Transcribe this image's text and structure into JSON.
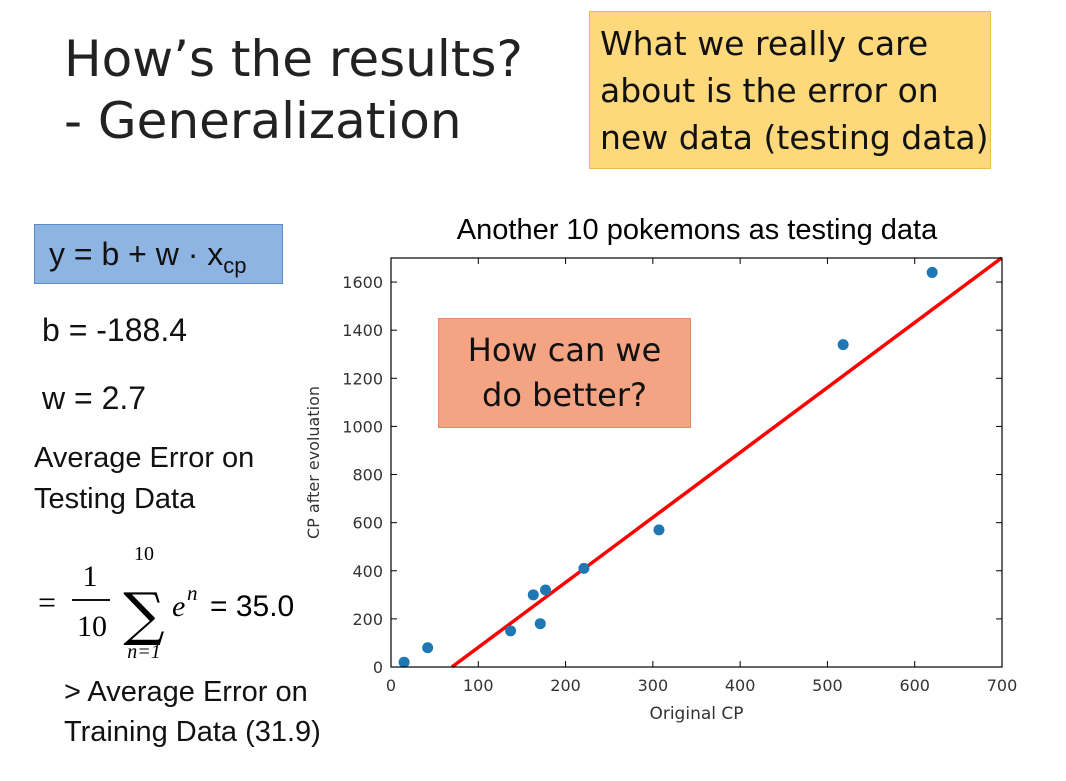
{
  "slide": {
    "title_line1": "How’s the results?",
    "title_line2": "- Generalization",
    "callout_lines": [
      "What we really care",
      "about is the error on",
      "new data (testing data)"
    ],
    "model": {
      "prefix": "y = b + w · x",
      "subscript": "cp"
    },
    "b_text": "b = -188.4",
    "w_text": "w = 2.7",
    "avg_error_lines": [
      "Average Error on",
      "Testing Data"
    ],
    "sum_formula": {
      "equals": "=",
      "frac_num": "1",
      "frac_den": "10",
      "sigma": "∑",
      "upper": "10",
      "lower": "n=1",
      "base": "e",
      "sup": "n",
      "result": "= 35.0"
    },
    "compare_lines": [
      "> Average Error on",
      "Training Data (31.9)"
    ],
    "overlay_lines": [
      "How can we",
      "do better?"
    ]
  },
  "colors": {
    "points": "#1f77b4",
    "fit_line": "#ff0000",
    "callout_bg": "#fdd97c",
    "formula_bg": "#8db4e2",
    "overlay_bg": "#f4a383"
  },
  "chart_data": {
    "type": "scatter",
    "title": "Another 10 pokemons as testing data",
    "xlabel": "Original CP",
    "ylabel": "CP after evoluation",
    "xlim": [
      0,
      700
    ],
    "ylim": [
      0,
      1700
    ],
    "xticks": [
      0,
      100,
      200,
      300,
      400,
      500,
      600,
      700
    ],
    "yticks": [
      0,
      200,
      400,
      600,
      800,
      1000,
      1200,
      1400,
      1600
    ],
    "grid": false,
    "series": [
      {
        "x": [
          15,
          42,
          137,
          163,
          171,
          177,
          221,
          307,
          518,
          620
        ],
        "y": [
          20,
          80,
          150,
          300,
          180,
          320,
          410,
          570,
          1340,
          1640
        ]
      }
    ],
    "fit_line": {
      "b": -188.4,
      "w": 2.7
    }
  }
}
